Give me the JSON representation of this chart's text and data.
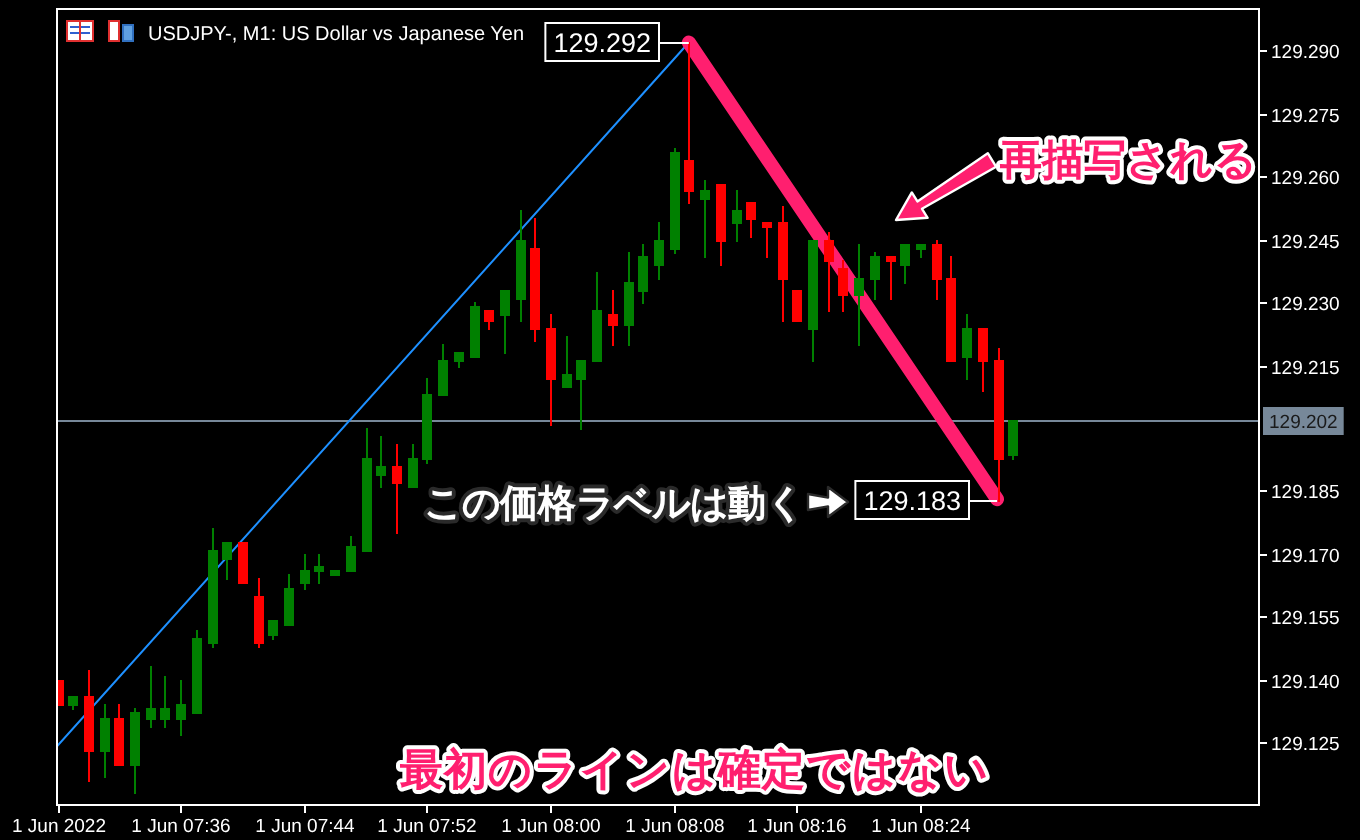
{
  "chart_data": {
    "type": "candlestick",
    "title": "USDJPY-, M1: US Dollar vs Japanese Yen",
    "x": [
      "2022-06-01T07:28",
      "2022-06-01T07:29",
      "2022-06-01T07:30",
      "2022-06-01T07:31",
      "2022-06-01T07:32",
      "2022-06-01T07:33",
      "2022-06-01T07:34",
      "2022-06-01T07:35",
      "2022-06-01T07:36",
      "2022-06-01T07:37",
      "2022-06-01T07:38",
      "2022-06-01T07:39",
      "2022-06-01T07:40",
      "2022-06-01T07:41",
      "2022-06-01T07:42",
      "2022-06-01T07:43",
      "2022-06-01T07:44",
      "2022-06-01T07:45",
      "2022-06-01T07:46",
      "2022-06-01T07:47",
      "2022-06-01T07:48",
      "2022-06-01T07:49",
      "2022-06-01T07:50",
      "2022-06-01T07:51",
      "2022-06-01T07:52",
      "2022-06-01T07:53",
      "2022-06-01T07:54",
      "2022-06-01T07:55",
      "2022-06-01T07:56",
      "2022-06-01T07:57",
      "2022-06-01T07:58",
      "2022-06-01T07:59",
      "2022-06-01T08:00",
      "2022-06-01T08:01",
      "2022-06-01T08:02",
      "2022-06-01T08:03",
      "2022-06-01T08:04",
      "2022-06-01T08:05",
      "2022-06-01T08:06",
      "2022-06-01T08:07",
      "2022-06-01T08:08",
      "2022-06-01T08:09",
      "2022-06-01T08:10",
      "2022-06-01T08:11",
      "2022-06-01T08:12",
      "2022-06-01T08:13",
      "2022-06-01T08:14",
      "2022-06-01T08:15",
      "2022-06-01T08:16",
      "2022-06-01T08:17",
      "2022-06-01T08:18",
      "2022-06-01T08:19",
      "2022-06-01T08:20",
      "2022-06-01T08:21",
      "2022-06-01T08:22",
      "2022-06-01T08:23",
      "2022-06-01T08:24",
      "2022-06-01T08:25",
      "2022-06-01T08:26",
      "2022-06-01T08:27",
      "2022-06-01T08:28",
      "2022-06-01T08:29",
      "2022-06-01T08:30"
    ],
    "ohlc": [
      [
        129.14,
        129.14,
        129.134,
        129.134
      ],
      [
        129.134,
        129.136,
        129.133,
        129.136
      ],
      [
        129.136,
        129.142,
        129.116,
        129.123
      ],
      [
        129.123,
        129.134,
        129.117,
        129.131
      ],
      [
        129.131,
        129.134,
        129.12,
        129.12
      ],
      [
        129.12,
        129.133,
        129.113,
        129.132
      ],
      [
        129.131,
        129.143,
        129.129,
        129.133
      ],
      [
        129.131,
        129.141,
        129.129,
        129.133
      ],
      [
        129.131,
        129.14,
        129.127,
        129.134
      ],
      [
        129.132,
        129.152,
        129.132,
        129.15
      ],
      [
        129.149,
        129.176,
        129.148,
        129.171
      ],
      [
        129.169,
        129.173,
        129.164,
        129.173
      ],
      [
        129.173,
        129.173,
        129.163,
        129.163
      ],
      [
        129.16,
        129.164,
        129.148,
        129.149
      ],
      [
        129.151,
        129.154,
        129.15,
        129.154
      ],
      [
        129.153,
        129.165,
        129.153,
        129.162
      ],
      [
        129.163,
        129.17,
        129.162,
        129.166
      ],
      [
        129.166,
        129.17,
        129.163,
        129.167
      ],
      [
        129.165,
        129.166,
        129.165,
        129.166
      ],
      [
        129.166,
        129.174,
        129.166,
        129.172
      ],
      [
        129.171,
        129.2,
        129.171,
        129.193
      ],
      [
        129.189,
        129.198,
        129.186,
        129.191
      ],
      [
        129.191,
        129.196,
        129.175,
        129.187
      ],
      [
        129.186,
        129.196,
        129.186,
        129.193
      ],
      [
        129.193,
        129.212,
        129.192,
        129.208
      ],
      [
        129.208,
        129.22,
        129.208,
        129.216
      ],
      [
        129.216,
        129.218,
        129.215,
        129.218
      ],
      [
        129.217,
        129.23,
        129.217,
        129.229
      ],
      [
        129.228,
        129.228,
        129.224,
        129.226
      ],
      [
        129.227,
        129.233,
        129.218,
        129.233
      ],
      [
        129.231,
        129.252,
        129.226,
        129.245
      ],
      [
        129.243,
        129.25,
        129.221,
        129.224
      ],
      [
        129.224,
        129.227,
        129.201,
        129.212
      ],
      [
        129.21,
        129.222,
        129.21,
        129.213
      ],
      [
        129.212,
        129.216,
        129.2,
        129.216
      ],
      [
        129.216,
        129.237,
        129.216,
        129.228
      ],
      [
        129.227,
        129.233,
        129.22,
        129.225
      ],
      [
        129.225,
        129.242,
        129.22,
        129.235
      ],
      [
        129.233,
        129.244,
        129.23,
        129.241
      ],
      [
        129.239,
        129.249,
        129.236,
        129.245
      ],
      [
        129.243,
        129.267,
        129.242,
        129.266
      ],
      [
        129.264,
        129.292,
        129.254,
        129.257
      ],
      [
        129.255,
        129.259,
        129.241,
        129.257
      ],
      [
        129.258,
        129.258,
        129.239,
        129.245
      ],
      [
        129.249,
        129.257,
        129.245,
        129.252
      ],
      [
        129.254,
        129.254,
        129.246,
        129.25
      ],
      [
        129.249,
        129.249,
        129.241,
        129.248
      ],
      [
        129.249,
        129.253,
        129.226,
        129.236
      ],
      [
        129.233,
        129.233,
        129.226,
        129.226
      ],
      [
        129.224,
        129.245,
        129.216,
        129.245
      ],
      [
        129.245,
        129.247,
        129.228,
        129.24
      ],
      [
        129.238,
        129.24,
        129.228,
        129.232
      ],
      [
        129.232,
        129.244,
        129.22,
        129.236
      ],
      [
        129.236,
        129.242,
        129.231,
        129.241
      ],
      [
        129.241,
        129.241,
        129.231,
        129.24
      ],
      [
        129.239,
        129.244,
        129.235,
        129.244
      ],
      [
        129.243,
        129.244,
        129.241,
        129.244
      ],
      [
        129.244,
        129.245,
        129.231,
        129.236
      ],
      [
        129.236,
        129.241,
        129.216,
        129.216
      ],
      [
        129.217,
        129.227,
        129.212,
        129.224
      ],
      [
        129.224,
        129.224,
        129.209,
        129.216
      ],
      [
        129.216,
        129.219,
        129.183,
        129.193
      ],
      [
        129.194,
        129.202,
        129.193,
        129.202
      ]
    ],
    "colors": [
      "#ff0000",
      "#008000",
      "#ff0000",
      "#008000",
      "#ff0000",
      "#008000",
      "#008000",
      "#008000",
      "#008000",
      "#008000",
      "#008000",
      "#008000",
      "#ff0000",
      "#ff0000",
      "#008000",
      "#008000",
      "#008000",
      "#008000",
      "#008000",
      "#008000",
      "#008000",
      "#008000",
      "#ff0000",
      "#008000",
      "#008000",
      "#008000",
      "#008000",
      "#008000",
      "#ff0000",
      "#008000",
      "#008000",
      "#ff0000",
      "#ff0000",
      "#008000",
      "#008000",
      "#008000",
      "#ff0000",
      "#008000",
      "#008000",
      "#008000",
      "#008000",
      "#ff0000",
      "#008000",
      "#ff0000",
      "#008000",
      "#ff0000",
      "#ff0000",
      "#ff0000",
      "#ff0000",
      "#008000",
      "#ff0000",
      "#ff0000",
      "#008000",
      "#008000",
      "#ff0000",
      "#008000",
      "#008000",
      "#ff0000",
      "#ff0000",
      "#008000",
      "#ff0000",
      "#ff0000",
      "#008000"
    ],
    "series": [
      {
        "type": "line",
        "color": "#1e90ff",
        "x": [
          "2022-06-01T07:28",
          "2022-06-01T08:09"
        ],
        "values": [
          129.124,
          129.292
        ]
      },
      {
        "type": "line",
        "color": "#ff1f6f",
        "x": [
          "2022-06-01T08:09",
          "2022-06-01T08:29"
        ],
        "values": [
          129.292,
          129.183
        ]
      }
    ],
    "xlim": [
      "2022-06-01T07:28",
      "2022-06-01T08:46"
    ],
    "xticks": [
      {
        "value": "2022-06-01T07:28",
        "label": "1 Jun 2022"
      },
      {
        "value": "2022-06-01T07:36",
        "label": "1 Jun 07:36"
      },
      {
        "value": "2022-06-01T07:44",
        "label": "1 Jun 07:44"
      },
      {
        "value": "2022-06-01T07:52",
        "label": "1 Jun 07:52"
      },
      {
        "value": "2022-06-01T08:00",
        "label": "1 Jun 08:00"
      },
      {
        "value": "2022-06-01T08:08",
        "label": "1 Jun 08:08"
      },
      {
        "value": "2022-06-01T08:16",
        "label": "1 Jun 08:16"
      },
      {
        "value": "2022-06-01T08:24",
        "label": "1 Jun 08:24"
      }
    ],
    "ylim": [
      129.11,
      129.3
    ],
    "yticks": [
      {
        "value": 129.29,
        "label": "129.290"
      },
      129.275,
      {
        "value": 129.26,
        "label": "129.260"
      },
      129.245,
      {
        "value": 129.23,
        "label": "129.230"
      },
      129.215,
      129.185,
      {
        "value": 129.17,
        "label": "129.170"
      },
      129.155,
      {
        "value": 129.14,
        "label": "129.140"
      },
      129.125
    ],
    "ref_lines": [
      {
        "axis": "y",
        "value": 129.202,
        "label": "129.202",
        "color": "#778899"
      }
    ],
    "annotations": [
      {
        "text": "129.292",
        "x": "2022-06-01T08:09",
        "y": 129.292
      },
      {
        "text": "129.183",
        "x": "2022-06-01T08:29",
        "y": 129.183
      },
      "再描写される",
      "この価格ラベルは動く",
      "最初のラインは確定ではない"
    ]
  }
}
